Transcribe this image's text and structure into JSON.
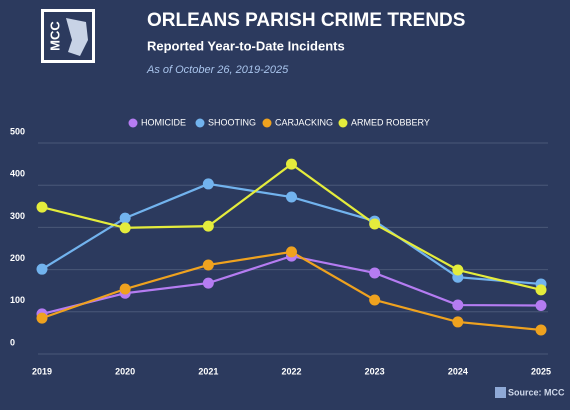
{
  "logo": "MCC",
  "source": "Source: MCC",
  "chart_data": {
    "type": "line",
    "title": "ORLEANS PARISH CRIME TRENDS",
    "subtitle": "Reported Year-to-Date Incidents",
    "note": "As of October 26, 2019-2025",
    "categories": [
      "2019",
      "2020",
      "2021",
      "2022",
      "2023",
      "2024",
      "2025"
    ],
    "series": [
      {
        "name": "HOMICIDE",
        "color": "#b57cf2",
        "values": [
          95,
          144,
          168,
          232,
          192,
          116,
          115
        ]
      },
      {
        "name": "SHOOTING",
        "color": "#72b3ee",
        "values": [
          201,
          322,
          403,
          372,
          315,
          182,
          166
        ]
      },
      {
        "name": "CARJACKING",
        "color": "#efa21f",
        "values": [
          85,
          154,
          211,
          242,
          128,
          76,
          57
        ]
      },
      {
        "name": "ARMED ROBBERY",
        "color": "#e4ec3c",
        "values": [
          348,
          299,
          303,
          450,
          308,
          199,
          152
        ]
      }
    ],
    "ylim": [
      0,
      500
    ],
    "yticks": [
      0,
      100,
      200,
      300,
      400,
      500
    ],
    "grid": true,
    "legend": "top"
  }
}
